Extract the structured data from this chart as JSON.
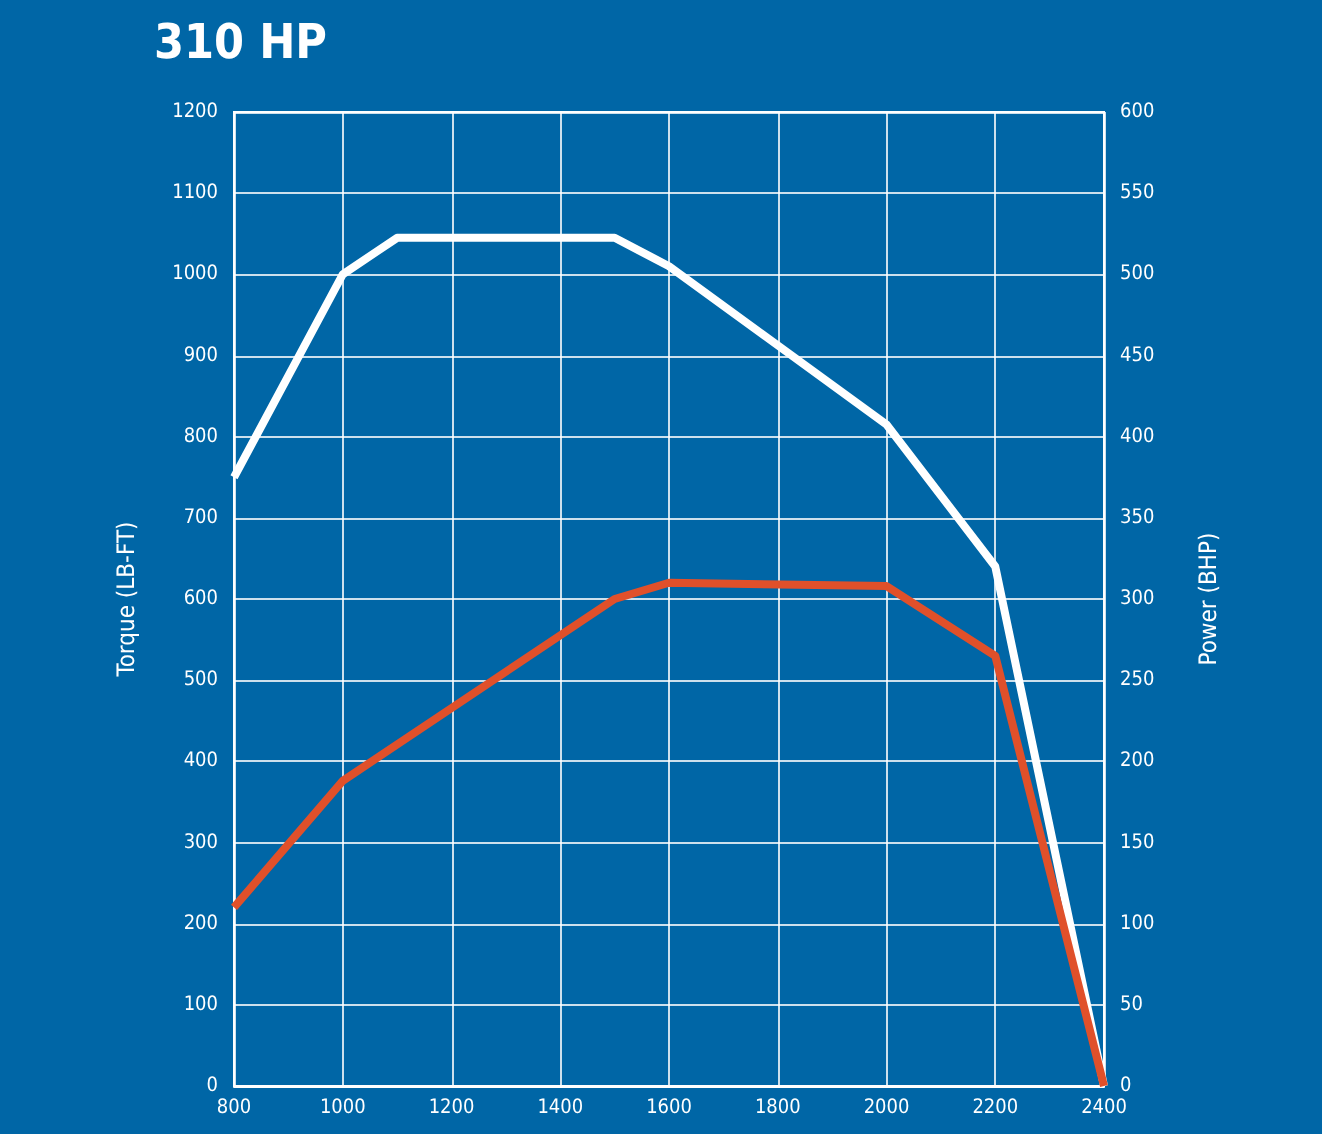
{
  "chart_data": {
    "type": "line",
    "title": "310 HP",
    "ylabel": "Torque (LB-FT)",
    "y2label": "Power (BHP)",
    "xlim": [
      800,
      2400
    ],
    "xticks": [
      800,
      1000,
      1200,
      1400,
      1600,
      1800,
      2000,
      2200,
      2400
    ],
    "ylim": [
      0,
      1200
    ],
    "yticks": [
      0,
      100,
      200,
      300,
      400,
      500,
      600,
      700,
      800,
      900,
      1000,
      1100,
      1200
    ],
    "y2lim": [
      0,
      600
    ],
    "y2ticks": [
      0,
      50,
      100,
      150,
      200,
      250,
      300,
      350,
      400,
      450,
      500,
      550,
      600
    ],
    "grid": true,
    "marker": "none",
    "series": [
      {
        "color": "#ffffff",
        "x": [
          800,
          1000,
          1100,
          1500,
          1600,
          2000,
          2200,
          2400
        ],
        "values": [
          750,
          1000,
          1045,
          1045,
          1010,
          815,
          640,
          0
        ]
      },
      {
        "color": "#e0502a",
        "axis": "y2",
        "x": [
          800,
          1000,
          1500,
          1600,
          2000,
          2200,
          2400
        ],
        "values": [
          110,
          188,
          300,
          310,
          308,
          265,
          0
        ]
      }
    ]
  }
}
